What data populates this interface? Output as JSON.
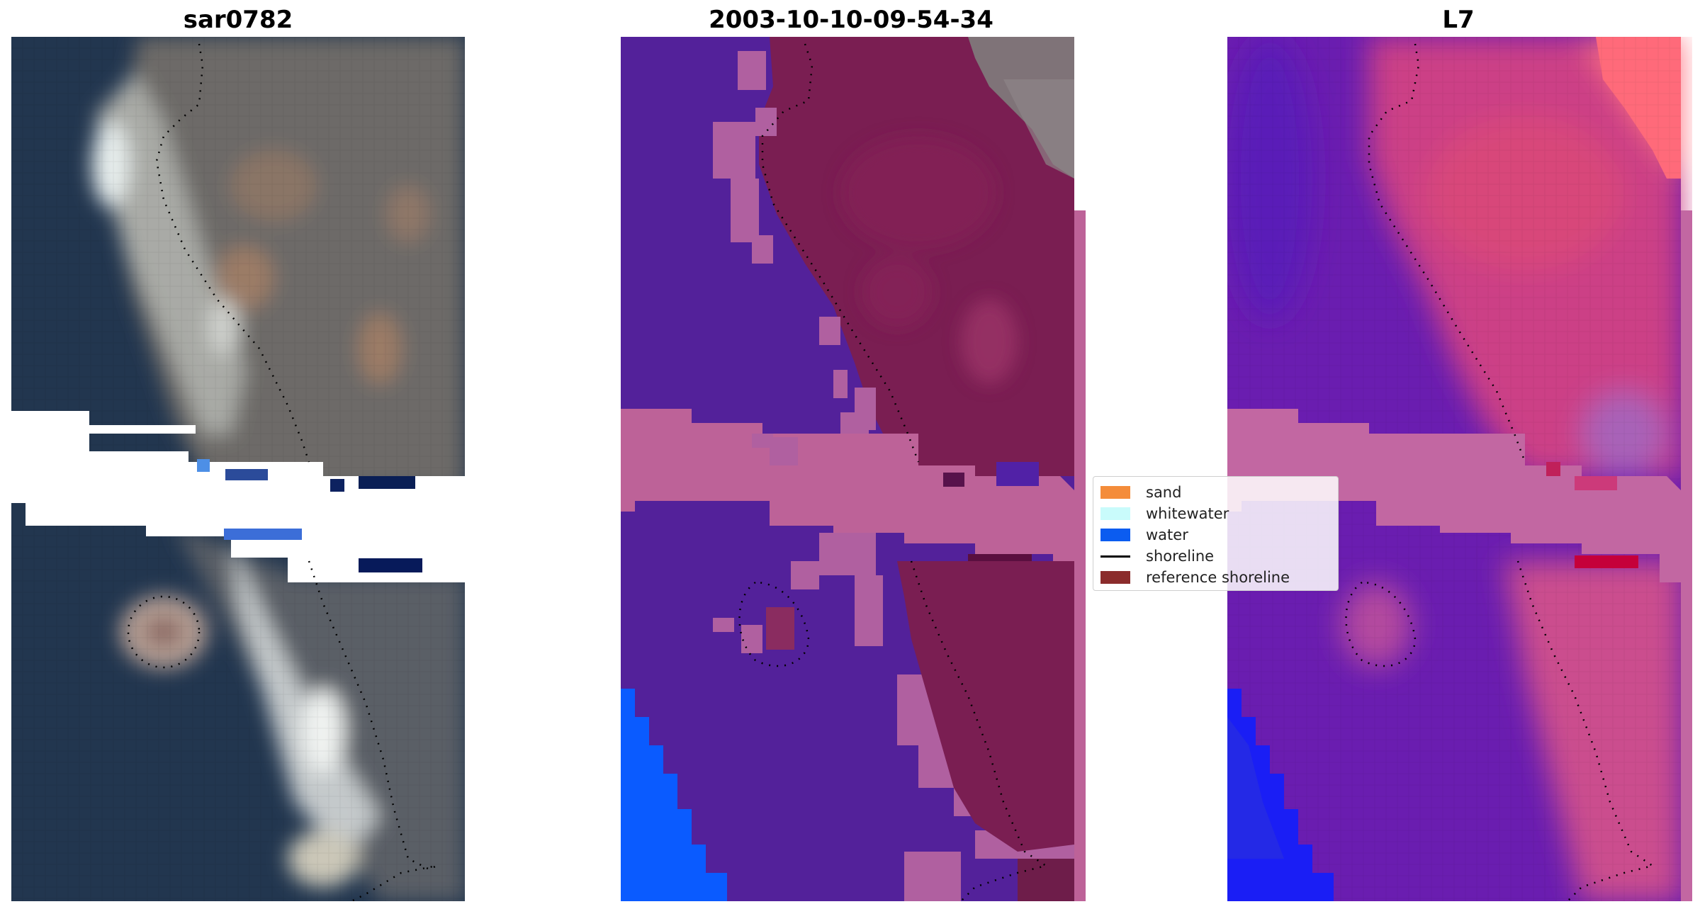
{
  "panels": [
    {
      "id": "rgb",
      "title": "sar0782"
    },
    {
      "id": "classified",
      "title": "2003-10-10-09-54-34"
    },
    {
      "id": "index",
      "title": "L7"
    }
  ],
  "legend": {
    "items": [
      {
        "label": "sand",
        "color": "#f48c3a",
        "kind": "patch"
      },
      {
        "label": "whitewater",
        "color": "#c9fbfb",
        "kind": "patch"
      },
      {
        "label": "water",
        "color": "#0b5cf0",
        "kind": "patch"
      },
      {
        "label": "shoreline",
        "color": "#000000",
        "kind": "line"
      },
      {
        "label": "reference shoreline",
        "color": "#8b2c2c",
        "kind": "patch"
      }
    ]
  }
}
